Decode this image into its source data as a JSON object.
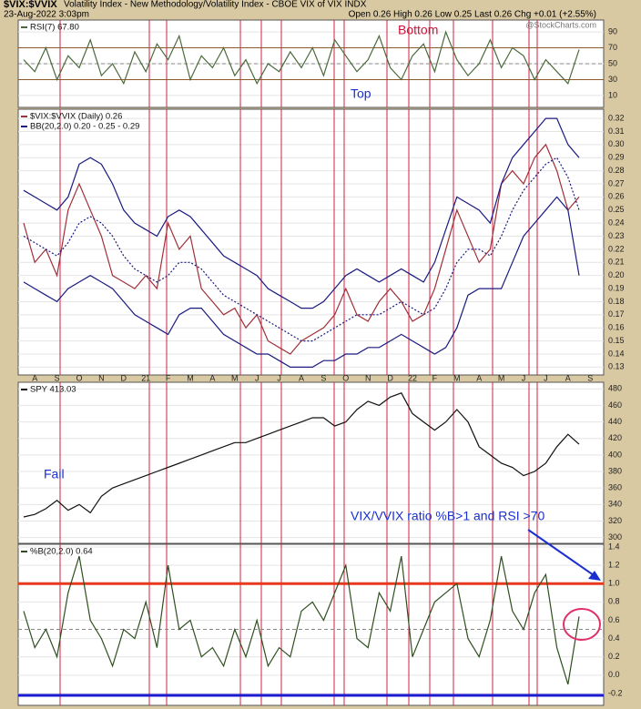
{
  "header": {
    "symbol": "$VIX:$VVIX",
    "description": "Volatility Index - New Methodology/Volatility Index - CBOE VIX of VIX INDX",
    "date": "23-Aug-2022 3:03pm",
    "quote": "Open 0.26  High 0.26  Low 0.25  Last 0.26  Chg +0.01 (+2.55%)",
    "credit": "@StockCharts.com"
  },
  "chart_data": [
    {
      "type": "line",
      "ylim": [
        -5,
        105
      ],
      "yticks": [
        10,
        30,
        50,
        70,
        90
      ],
      "grid": true,
      "hlines": [
        {
          "value": 70,
          "color": "#8b5a2b"
        },
        {
          "value": 30,
          "color": "#8b5a2b"
        },
        {
          "value": 50,
          "color": "#888888",
          "dash": true
        }
      ],
      "annotations": [
        {
          "text": "Bottom",
          "color": "#d0103a"
        },
        {
          "text": "Top",
          "color": "#1a2fd0"
        }
      ],
      "series": [
        {
          "name": "RSI(7) 67.80",
          "color": "#4a6a3a",
          "values": [
            55,
            40,
            70,
            30,
            60,
            45,
            80,
            35,
            50,
            25,
            65,
            40,
            75,
            55,
            85,
            30,
            60,
            45,
            70,
            35,
            55,
            25,
            50,
            40,
            65,
            45,
            70,
            35,
            80,
            60,
            40,
            55,
            85,
            45,
            30,
            60,
            75,
            40,
            90,
            55,
            35,
            50,
            80,
            45,
            70,
            60,
            30,
            55,
            40,
            25,
            67.8,
            null
          ]
        }
      ]
    },
    {
      "type": "line",
      "ylim": [
        0.124,
        0.327
      ],
      "grid": true,
      "yticks": [
        0.13,
        0.14,
        0.15,
        0.16,
        0.17,
        0.18,
        0.19,
        {
          "value": 0.2,
          "label": "0.20"
        },
        0.21,
        0.22,
        0.23,
        0.24,
        0.25,
        0.26,
        0.27,
        0.28,
        0.29,
        {
          "value": 0.3,
          "label": "0.30"
        },
        0.31,
        0.32
      ],
      "categories": [
        null,
        "A",
        null,
        "S",
        null,
        "O",
        null,
        "N",
        null,
        "D",
        null,
        "21",
        null,
        "F",
        null,
        "M",
        null,
        "A",
        null,
        "M",
        null,
        "J",
        null,
        "J",
        null,
        "A",
        null,
        "S",
        null,
        "O",
        null,
        "N",
        null,
        "D",
        null,
        "22",
        null,
        "F",
        null,
        "M",
        null,
        "A",
        null,
        "M",
        null,
        "J",
        null,
        "J",
        null,
        "A",
        null,
        "S"
      ],
      "series": [
        {
          "name": "$VIX:$VVIX (Daily) 0.26",
          "color": "#a0303a",
          "values": [
            0.24,
            0.21,
            0.22,
            0.2,
            0.25,
            0.27,
            0.25,
            0.23,
            0.2,
            0.195,
            0.19,
            0.2,
            0.19,
            0.24,
            0.22,
            0.23,
            0.19,
            0.18,
            0.17,
            0.175,
            0.16,
            0.17,
            0.15,
            0.145,
            0.14,
            0.15,
            0.155,
            0.16,
            0.17,
            0.19,
            0.17,
            0.165,
            0.18,
            0.19,
            0.18,
            0.165,
            0.17,
            0.19,
            0.22,
            0.25,
            0.23,
            0.21,
            0.22,
            0.27,
            0.28,
            0.27,
            0.29,
            0.3,
            0.28,
            0.25,
            0.26,
            null
          ]
        },
        {
          "name": "BB(20,2.0) 0.20 - 0.25 - 0.29",
          "color": "#1a1a80",
          "values": [
            0.265,
            0.26,
            0.255,
            0.25,
            0.26,
            0.285,
            0.29,
            0.285,
            0.27,
            0.25,
            0.24,
            0.235,
            0.23,
            0.245,
            0.25,
            0.245,
            0.235,
            0.225,
            0.215,
            0.21,
            0.205,
            0.2,
            0.19,
            0.185,
            0.18,
            0.175,
            0.175,
            0.18,
            0.19,
            0.2,
            0.205,
            0.2,
            0.195,
            0.2,
            0.205,
            0.2,
            0.195,
            0.21,
            0.235,
            0.26,
            0.255,
            0.25,
            0.24,
            0.27,
            0.29,
            0.3,
            0.31,
            0.32,
            0.32,
            0.3,
            0.29,
            null
          ]
        },
        {
          "color": "#1a1a80",
          "dash": true,
          "values": [
            0.23,
            0.225,
            0.22,
            0.215,
            0.225,
            0.24,
            0.245,
            0.24,
            0.23,
            0.215,
            0.205,
            0.2,
            0.195,
            0.2,
            0.21,
            0.21,
            0.205,
            0.195,
            0.185,
            0.18,
            0.175,
            0.17,
            0.165,
            0.16,
            0.155,
            0.15,
            0.15,
            0.155,
            0.16,
            0.165,
            0.17,
            0.17,
            0.17,
            0.175,
            0.18,
            0.175,
            0.17,
            0.175,
            0.19,
            0.21,
            0.22,
            0.22,
            0.215,
            0.23,
            0.25,
            0.265,
            0.275,
            0.285,
            0.29,
            0.275,
            0.25,
            null
          ]
        },
        {
          "color": "#1a1a80",
          "values": [
            0.195,
            0.19,
            0.185,
            0.18,
            0.19,
            0.195,
            0.2,
            0.195,
            0.19,
            0.18,
            0.17,
            0.165,
            0.16,
            0.155,
            0.17,
            0.175,
            0.175,
            0.165,
            0.155,
            0.15,
            0.145,
            0.14,
            0.14,
            0.135,
            0.13,
            0.13,
            0.13,
            0.135,
            0.135,
            0.14,
            0.14,
            0.145,
            0.145,
            0.15,
            0.155,
            0.15,
            0.145,
            0.14,
            0.145,
            0.16,
            0.185,
            0.19,
            0.19,
            0.19,
            0.21,
            0.23,
            0.24,
            0.25,
            0.26,
            0.25,
            0.2,
            null
          ]
        }
      ]
    },
    {
      "type": "line",
      "ylim": [
        293,
        488
      ],
      "yticks": [
        300,
        320,
        340,
        360,
        380,
        400,
        420,
        440,
        460,
        480
      ],
      "grid": true,
      "annotations": [
        {
          "text": "Fail",
          "color": "#1a2fd0"
        },
        {
          "text": "VIX/VVIX ratio %B>1 and RSI >70",
          "color": "#1a2fd0"
        }
      ],
      "series": [
        {
          "name": "SPY 413.03",
          "color": "#111111",
          "values": [
            325,
            328,
            335,
            345,
            333,
            340,
            330,
            350,
            360,
            365,
            370,
            375,
            380,
            385,
            390,
            395,
            400,
            405,
            410,
            415,
            415,
            420,
            425,
            430,
            435,
            440,
            445,
            445,
            435,
            440,
            455,
            465,
            460,
            470,
            475,
            450,
            440,
            430,
            440,
            455,
            440,
            410,
            400,
            390,
            385,
            375,
            380,
            390,
            410,
            425,
            413.03,
            null
          ]
        }
      ]
    },
    {
      "type": "line",
      "ylim": [
        -0.33,
        1.43
      ],
      "grid": true,
      "yticks": [
        -0.2,
        {
          "value": 0,
          "label": "0.0"
        },
        0.2,
        0.4,
        0.6,
        0.8,
        {
          "value": 1,
          "label": "1.0"
        },
        1.2,
        1.4
      ],
      "hlines": [
        {
          "value": 1,
          "color": "#e8391f",
          "width": 3
        },
        {
          "value": -0.22,
          "color": "#1a1ad0",
          "width": 3
        },
        {
          "value": 0.5,
          "color": "#888888",
          "dash": true
        }
      ],
      "series": [
        {
          "name": "%B(20,2.0) 0.64",
          "color": "#2f4f1f",
          "values": [
            0.7,
            0.3,
            0.5,
            0.2,
            0.9,
            1.3,
            0.6,
            0.4,
            0.1,
            0.5,
            0.4,
            0.8,
            0.3,
            1.2,
            0.5,
            0.6,
            0.2,
            0.3,
            0.1,
            0.5,
            0.2,
            0.6,
            0.1,
            0.3,
            0.2,
            0.7,
            0.8,
            0.6,
            0.9,
            1.2,
            0.4,
            0.3,
            0.9,
            0.7,
            1.3,
            0.2,
            0.5,
            0.8,
            0.9,
            1.0,
            0.4,
            0.2,
            0.6,
            1.3,
            0.7,
            0.5,
            0.9,
            1.1,
            0.3,
            -0.1,
            0.64,
            null
          ]
        }
      ]
    }
  ]
}
